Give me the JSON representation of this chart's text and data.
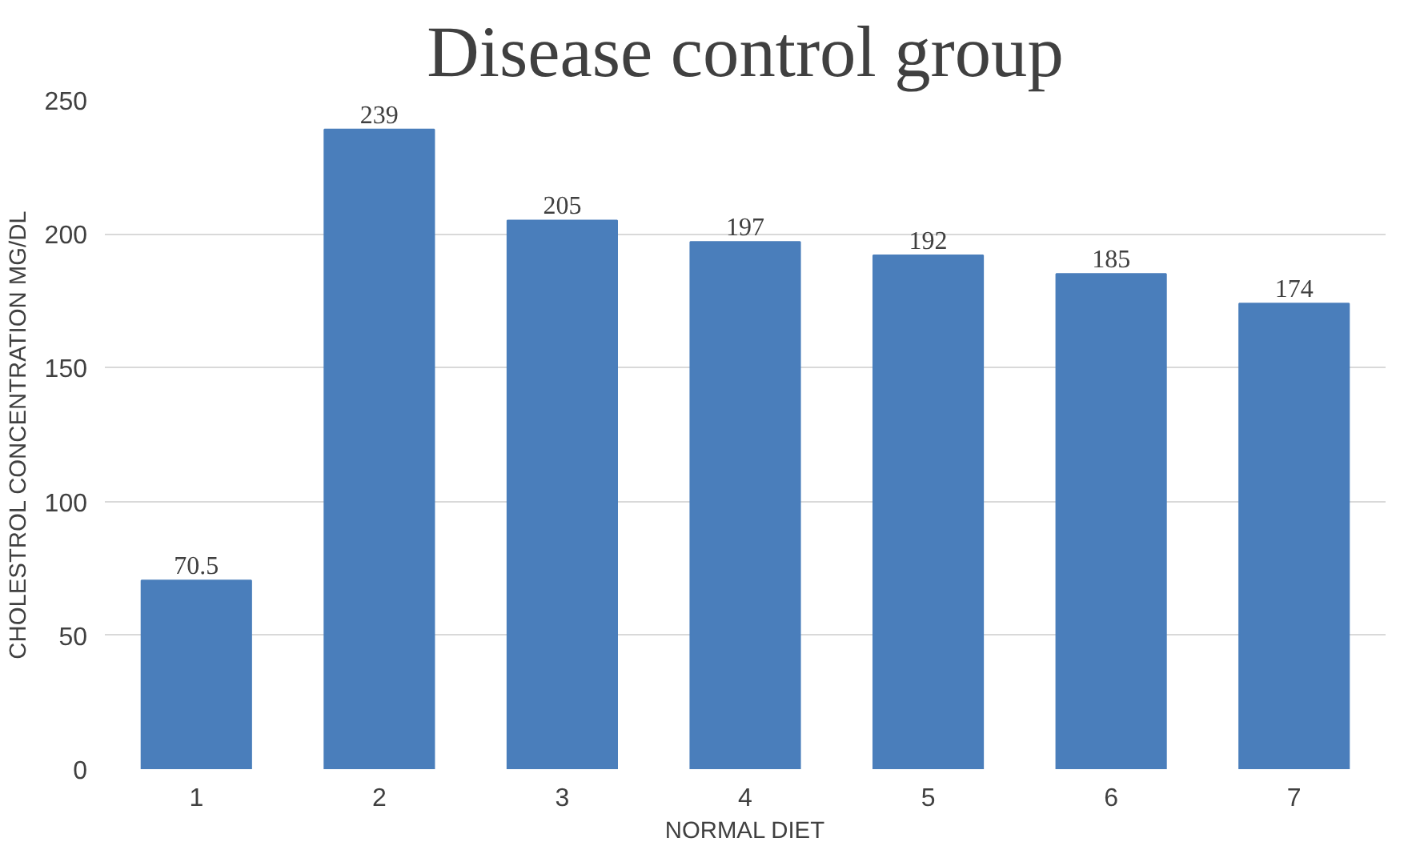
{
  "chart_data": {
    "type": "bar",
    "title": "Disease control group",
    "xlabel": "NORMAL DIET",
    "ylabel": "CHOLESTROL CONCENTRATION MG/DL",
    "categories": [
      "1",
      "2",
      "3",
      "4",
      "5",
      "6",
      "7"
    ],
    "values": [
      70.5,
      239,
      205,
      197,
      192,
      185,
      174
    ],
    "color": "#4a7ebb",
    "ylim": [
      0,
      250
    ],
    "yticks": [
      0,
      50,
      100,
      150,
      200,
      250
    ],
    "grid": "y",
    "data_labels": true
  }
}
